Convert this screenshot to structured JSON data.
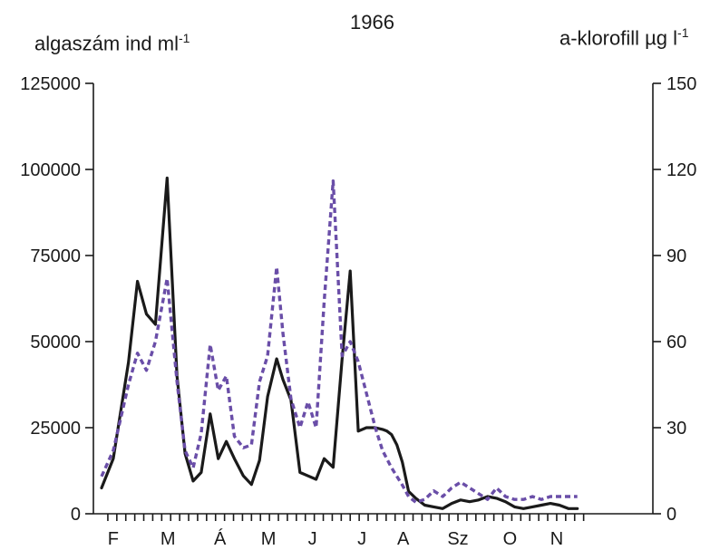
{
  "chart_data": {
    "type": "line",
    "title": "1966",
    "ylabel_left": {
      "text": "algaszám ind ml",
      "sup": "-1"
    },
    "ylabel_right": {
      "text": "a-klorofill µg l",
      "sup": "-1"
    },
    "ylim_left": [
      0,
      125000
    ],
    "ylim_right": [
      0,
      150
    ],
    "yticks_left": [
      "0",
      "25000",
      "50000",
      "75000",
      "100000",
      "125000"
    ],
    "yticks_right": [
      "0",
      "30",
      "60",
      "90",
      "120",
      "150"
    ],
    "x_range": [
      0,
      60
    ],
    "month_ticks": [
      {
        "label": "F",
        "x": 1.3
      },
      {
        "label": "M",
        "x": 7.4
      },
      {
        "label": "Á",
        "x": 13.2
      },
      {
        "label": "M",
        "x": 18.6
      },
      {
        "label": "J",
        "x": 23.5
      },
      {
        "label": "J",
        "x": 29.0
      },
      {
        "label": "A",
        "x": 33.6
      },
      {
        "label": "Sz",
        "x": 39.7
      },
      {
        "label": "O",
        "x": 45.5
      },
      {
        "label": "N",
        "x": 50.7
      }
    ],
    "series": [
      {
        "axis": "left",
        "style": "solid",
        "color": "#1a1a1a",
        "x": [
          0,
          1.3,
          3,
          4,
          5,
          6,
          7.3,
          8.4,
          9.3,
          10.2,
          11.1,
          12.1,
          13.0,
          13.9,
          14.8,
          15.8,
          16.7,
          17.6,
          18.5,
          19.5,
          20.2,
          21.1,
          22.1,
          23.0,
          23.9,
          24.8,
          25.8,
          26.8,
          27.7,
          28.6,
          29.5,
          30.5,
          31.3,
          31.8,
          32.3,
          32.9,
          33.5,
          34.2,
          35,
          36,
          37,
          38,
          39,
          40,
          41,
          42,
          43,
          44,
          45,
          46,
          47,
          48,
          49,
          50,
          51,
          52,
          53
        ],
        "values": [
          7500,
          16000,
          44000,
          67500,
          58000,
          55000,
          97500,
          40000,
          17500,
          9500,
          12000,
          29000,
          16000,
          21000,
          16000,
          11000,
          8500,
          15500,
          34000,
          45000,
          39000,
          33000,
          12000,
          11000,
          10000,
          16000,
          13500,
          45000,
          70500,
          24000,
          25000,
          25000,
          24500,
          24000,
          23000,
          20000,
          15000,
          6500,
          4500,
          2500,
          2000,
          1500,
          3000,
          4000,
          3500,
          4000,
          5000,
          4500,
          3500,
          2000,
          1500,
          2000,
          2500,
          3000,
          2500,
          1500,
          1500
        ]
      },
      {
        "axis": "right",
        "style": "dashed",
        "color": "#6a4ea8",
        "x": [
          0,
          1.3,
          3,
          4,
          5,
          6,
          7.3,
          8.4,
          9.3,
          10.2,
          11.1,
          12.1,
          13.0,
          13.9,
          14.8,
          15.8,
          16.7,
          17.6,
          18.5,
          19.5,
          20.2,
          21.1,
          22.1,
          23.0,
          23.9,
          24.8,
          25.8,
          26.8,
          27.7,
          28.6,
          29.5,
          30.5,
          31.3,
          32.3,
          33.5,
          34.2,
          35,
          36,
          37,
          38,
          39,
          40,
          41,
          42,
          43,
          44,
          45,
          46,
          47,
          48,
          49,
          50,
          51,
          52,
          53
        ],
        "values": [
          13,
          22,
          45,
          56,
          50,
          60,
          82,
          46,
          22,
          16,
          28,
          59,
          43,
          48,
          27,
          23,
          24,
          46,
          55,
          86,
          63,
          40,
          30,
          39,
          30,
          74,
          116,
          55,
          60,
          53,
          42,
          30,
          22,
          16,
          10,
          6,
          4,
          5,
          8,
          6,
          9,
          11,
          9,
          7,
          5,
          9,
          6,
          5,
          5,
          6,
          5,
          6,
          6,
          6,
          6
        ]
      }
    ],
    "grid": false,
    "legend": "none"
  }
}
